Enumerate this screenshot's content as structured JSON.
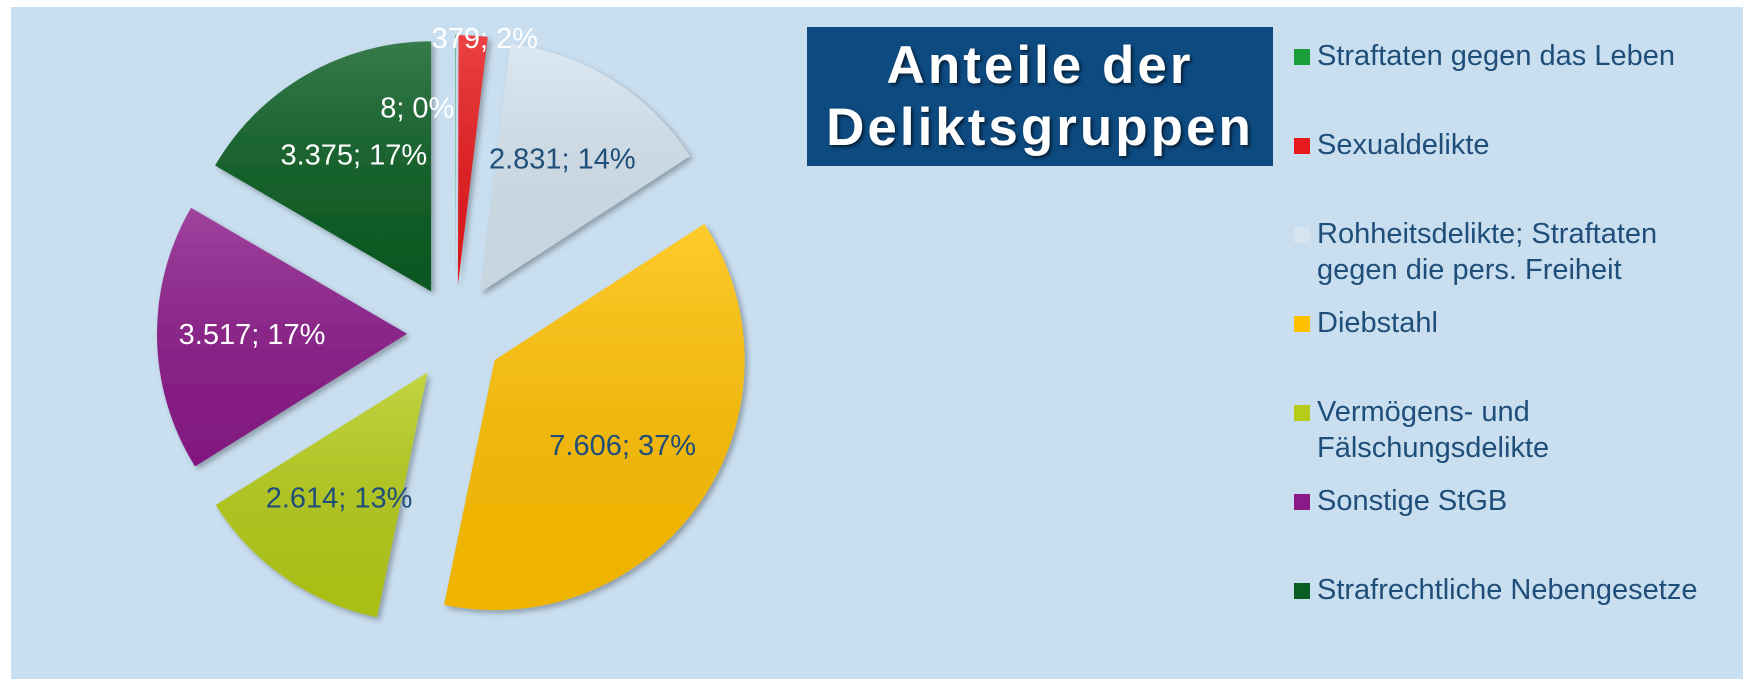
{
  "chart_data": {
    "type": "pie",
    "title": "Anteile der Deliktsgruppen",
    "categories": [
      "Straftaten gegen das Leben",
      "Sexualdelikte",
      "Rohheitsdelikte; Straftaten gegen die pers. Freiheit",
      "Diebstahl",
      "Vermögens- und Fälschungsdelikte",
      "Sonstige StGB",
      "Strafrechtliche Nebengesetze"
    ],
    "values": [
      8,
      379,
      2831,
      7606,
      2614,
      3517,
      3375
    ],
    "value_labels": [
      "8; 0%",
      "379; 2%",
      "2.831; 14%",
      "7.606; 37%",
      "2.614; 13%",
      "3.517; 17%",
      "3.375; 17%"
    ],
    "colors": [
      "#1a9e3a",
      "#e8191c",
      "#d5e4ef",
      "#ffc000",
      "#b5cc18",
      "#8b1a89",
      "#0b5e23"
    ],
    "exploded": true
  }
}
